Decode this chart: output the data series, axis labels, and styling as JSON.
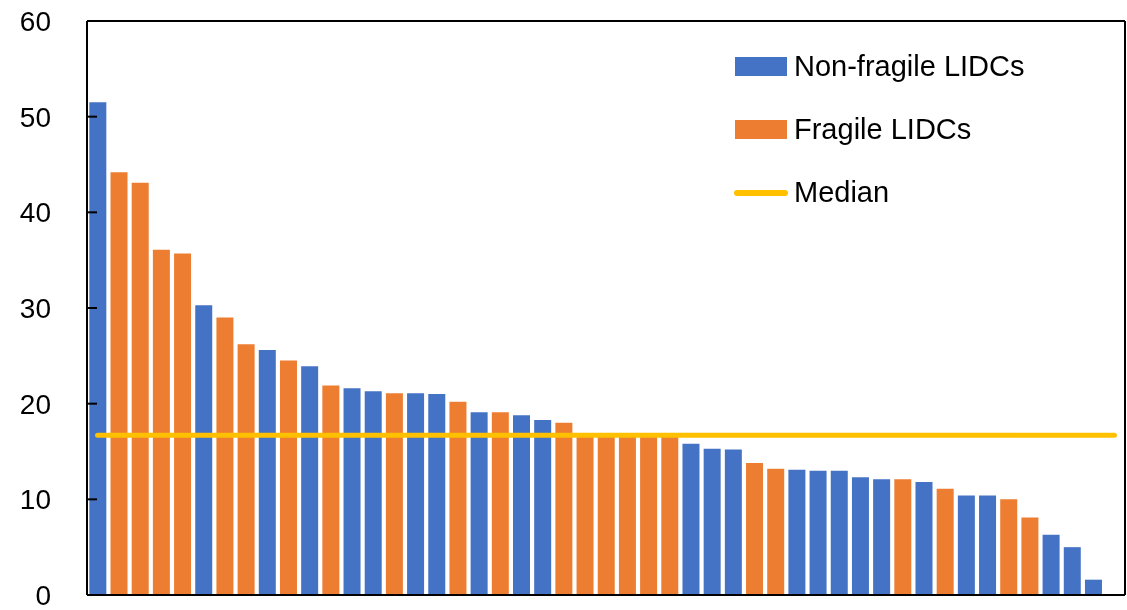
{
  "chart_data": {
    "type": "bar",
    "stacked": true,
    "categories": [
      null,
      null,
      null,
      null,
      null,
      null,
      null,
      null,
      null,
      null,
      null,
      null,
      null,
      null,
      null,
      null,
      null,
      null,
      null,
      null,
      null,
      null,
      null,
      null,
      null,
      null,
      null,
      null,
      null,
      null,
      null,
      null,
      null,
      null,
      null,
      null,
      null,
      null,
      null,
      null,
      null,
      null,
      null,
      null,
      null,
      null,
      null,
      null,
      null
    ],
    "series": [
      {
        "name": "Non-fragile LIDCs",
        "color": "#4472c4",
        "values": [
          51.5,
          null,
          null,
          null,
          null,
          30.3,
          null,
          null,
          25.6,
          null,
          23.9,
          null,
          21.6,
          21.3,
          null,
          21.1,
          21.0,
          null,
          19.1,
          null,
          18.8,
          18.3,
          null,
          null,
          null,
          null,
          null,
          null,
          15.8,
          15.3,
          15.2,
          null,
          null,
          13.1,
          13.0,
          13.0,
          12.3,
          12.1,
          null,
          11.8,
          null,
          10.4,
          10.4,
          null,
          null,
          6.3,
          5.0,
          1.6,
          null
        ]
      },
      {
        "name": "Fragile LIDCs",
        "color": "#ed7d31",
        "values": [
          null,
          44.2,
          43.1,
          36.1,
          35.7,
          null,
          29.0,
          26.2,
          null,
          24.5,
          null,
          21.9,
          null,
          null,
          21.1,
          null,
          null,
          20.2,
          null,
          19.1,
          null,
          null,
          18.0,
          16.7,
          16.7,
          16.7,
          16.7,
          16.7,
          null,
          null,
          null,
          13.8,
          13.2,
          null,
          null,
          null,
          null,
          null,
          12.1,
          null,
          11.1,
          null,
          null,
          10.0,
          8.1,
          null,
          null,
          null,
          null
        ]
      },
      {
        "name": "Median",
        "type": "line",
        "color": "#ffc000",
        "values": [
          16.7,
          16.7,
          16.7,
          16.7,
          16.7,
          16.7,
          16.7,
          16.7,
          16.7,
          16.7,
          16.7,
          16.7,
          16.7,
          16.7,
          16.7,
          16.7,
          16.7,
          16.7,
          16.7,
          16.7,
          16.7,
          16.7,
          16.7,
          16.7,
          16.7,
          16.7,
          16.7,
          16.7,
          16.7,
          16.7,
          16.7,
          16.7,
          16.7,
          16.7,
          16.7,
          16.7,
          16.7,
          16.7,
          16.7,
          16.7,
          16.7,
          16.7,
          16.7,
          16.7,
          16.7,
          16.7,
          16.7,
          16.7,
          16.7
        ]
      }
    ],
    "ylim": [
      0,
      60
    ],
    "yticks": [
      0,
      10,
      20,
      30,
      40,
      50,
      60
    ],
    "marker": "none",
    "legend": "top right"
  }
}
